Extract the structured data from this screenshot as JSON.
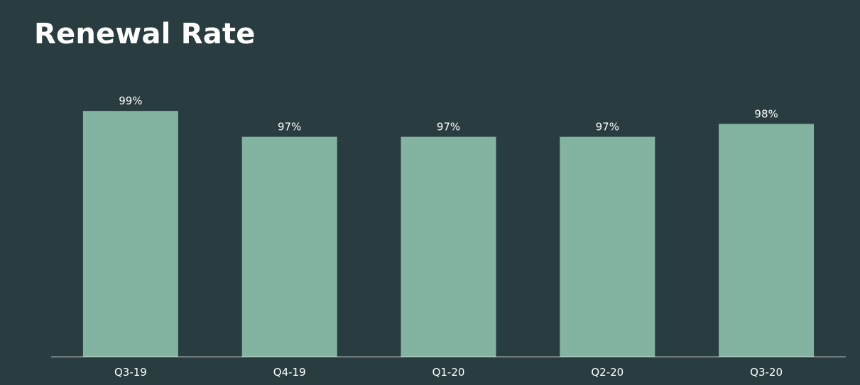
{
  "title": "Renewal Rate",
  "colors": {
    "background": "#293c40",
    "bar": "#82b4a1",
    "axis": "#d9e1df",
    "text": "#ffffff"
  },
  "chart_data": {
    "type": "bar",
    "title": "Renewal Rate",
    "categories": [
      "Q3-19",
      "Q4-19",
      "Q1-20",
      "Q2-20",
      "Q3-20"
    ],
    "values": [
      99,
      97,
      97,
      97,
      98
    ],
    "data_labels": [
      "99%",
      "97%",
      "97%",
      "97%",
      "98%"
    ],
    "xlabel": "",
    "ylabel": "",
    "ylim": [
      80,
      100
    ],
    "grid": false,
    "legend": "none"
  }
}
